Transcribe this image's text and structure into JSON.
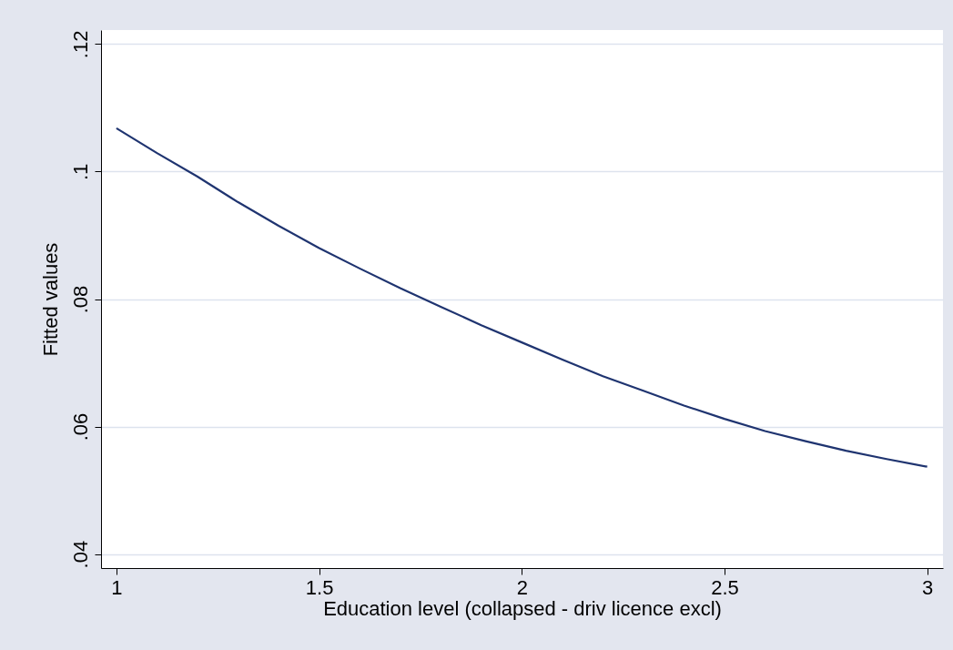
{
  "chart_data": {
    "type": "line",
    "xlabel": "Education level (collapsed - driv licence excl)",
    "ylabel": "Fitted values",
    "x": [
      1,
      1.1,
      1.2,
      1.3,
      1.4,
      1.5,
      1.6,
      1.7,
      1.8,
      1.9,
      2,
      2.1,
      2.2,
      2.3,
      2.4,
      2.5,
      2.6,
      2.7,
      2.8,
      2.9,
      3
    ],
    "series": [
      {
        "color": "#1f3470",
        "values": [
          0.1068,
          0.1029,
          0.0992,
          0.0952,
          0.0915,
          0.088,
          0.0848,
          0.0817,
          0.0788,
          0.0759,
          0.0732,
          0.0705,
          0.0679,
          0.0656,
          0.0633,
          0.0612,
          0.0593,
          0.0577,
          0.0562,
          0.0549,
          0.0537
        ]
      }
    ],
    "xlim": [
      0.962,
      3.039
    ],
    "ylim": [
      0.0378,
      0.1222
    ],
    "xticks": [
      1,
      1.5,
      2,
      2.5,
      3
    ],
    "yticks": [
      {
        "value": 0.04,
        "label": ".04"
      },
      {
        "value": 0.06,
        "label": ".06"
      },
      {
        "value": 0.08,
        "label": ".08"
      },
      {
        "value": 0.1,
        "label": ".1"
      },
      {
        "value": 0.12,
        "label": ".12"
      }
    ],
    "grid": "y",
    "marker": "none",
    "line_style": "solid"
  }
}
